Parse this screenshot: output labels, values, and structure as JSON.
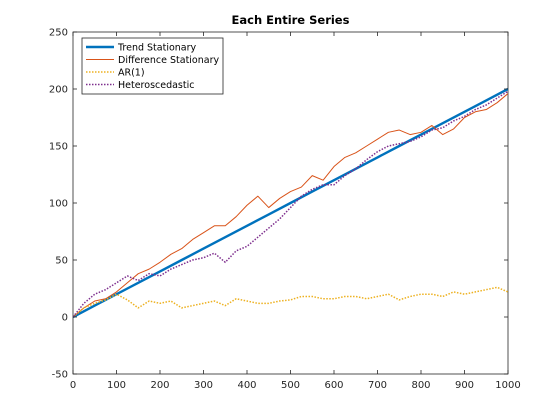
{
  "chart_data": {
    "type": "line",
    "title": "Each Entire Series",
    "xlabel": "",
    "ylabel": "",
    "xlim": [
      0,
      1000
    ],
    "ylim": [
      -50,
      250
    ],
    "xticks": [
      0,
      100,
      200,
      300,
      400,
      500,
      600,
      700,
      800,
      900,
      1000
    ],
    "yticks": [
      -50,
      0,
      50,
      100,
      150,
      200,
      250
    ],
    "grid": false,
    "legend_position": "top-left",
    "series": [
      {
        "name": "Trend Stationary",
        "color": "#0072BD",
        "style": "solid",
        "width": "thick",
        "x": [
          0,
          50,
          100,
          150,
          200,
          250,
          300,
          350,
          400,
          450,
          500,
          550,
          600,
          650,
          700,
          750,
          800,
          850,
          900,
          950,
          1000
        ],
        "y": [
          0,
          10,
          20,
          30,
          40,
          50,
          60,
          70,
          80,
          90,
          100,
          110,
          120,
          130,
          140,
          150,
          160,
          170,
          180,
          190,
          200
        ]
      },
      {
        "name": "Difference Stationary",
        "color": "#D95319",
        "style": "solid",
        "width": "thin",
        "x": [
          0,
          25,
          50,
          75,
          100,
          125,
          150,
          175,
          200,
          225,
          250,
          275,
          300,
          325,
          350,
          375,
          400,
          425,
          450,
          475,
          500,
          525,
          550,
          575,
          600,
          625,
          650,
          675,
          700,
          725,
          750,
          775,
          800,
          825,
          850,
          875,
          900,
          925,
          950,
          975,
          1000
        ],
        "y": [
          0,
          8,
          14,
          16,
          22,
          30,
          38,
          42,
          48,
          55,
          60,
          68,
          74,
          80,
          80,
          88,
          98,
          106,
          96,
          104,
          110,
          114,
          124,
          120,
          132,
          140,
          144,
          150,
          156,
          162,
          164,
          160,
          162,
          168,
          160,
          165,
          175,
          180,
          182,
          188,
          196
        ]
      },
      {
        "name": "AR(1)",
        "color": "#EDB120",
        "style": "dotted",
        "width": "normal",
        "x": [
          0,
          25,
          50,
          75,
          100,
          125,
          150,
          175,
          200,
          225,
          250,
          275,
          300,
          325,
          350,
          375,
          400,
          425,
          450,
          475,
          500,
          525,
          550,
          575,
          600,
          625,
          650,
          675,
          700,
          725,
          750,
          775,
          800,
          825,
          850,
          875,
          900,
          925,
          950,
          975,
          1000
        ],
        "y": [
          0,
          8,
          12,
          15,
          20,
          15,
          8,
          14,
          12,
          14,
          8,
          10,
          12,
          14,
          10,
          16,
          14,
          12,
          12,
          14,
          15,
          18,
          18,
          16,
          16,
          18,
          18,
          16,
          18,
          20,
          15,
          18,
          20,
          20,
          18,
          22,
          20,
          22,
          24,
          26,
          22
        ]
      },
      {
        "name": "Heteroscedastic",
        "color": "#7E2F8E",
        "style": "dotted",
        "width": "normal",
        "x": [
          0,
          25,
          50,
          75,
          100,
          125,
          150,
          175,
          200,
          225,
          250,
          275,
          300,
          325,
          350,
          375,
          400,
          425,
          450,
          475,
          500,
          525,
          550,
          575,
          600,
          625,
          650,
          675,
          700,
          725,
          750,
          775,
          800,
          825,
          850,
          875,
          900,
          925,
          950,
          975,
          1000
        ],
        "y": [
          0,
          12,
          20,
          24,
          30,
          36,
          32,
          38,
          36,
          42,
          46,
          50,
          52,
          56,
          48,
          58,
          62,
          70,
          78,
          86,
          96,
          106,
          112,
          116,
          116,
          124,
          130,
          138,
          145,
          150,
          152,
          154,
          158,
          164,
          166,
          172,
          176,
          182,
          186,
          192,
          198
        ]
      }
    ]
  }
}
